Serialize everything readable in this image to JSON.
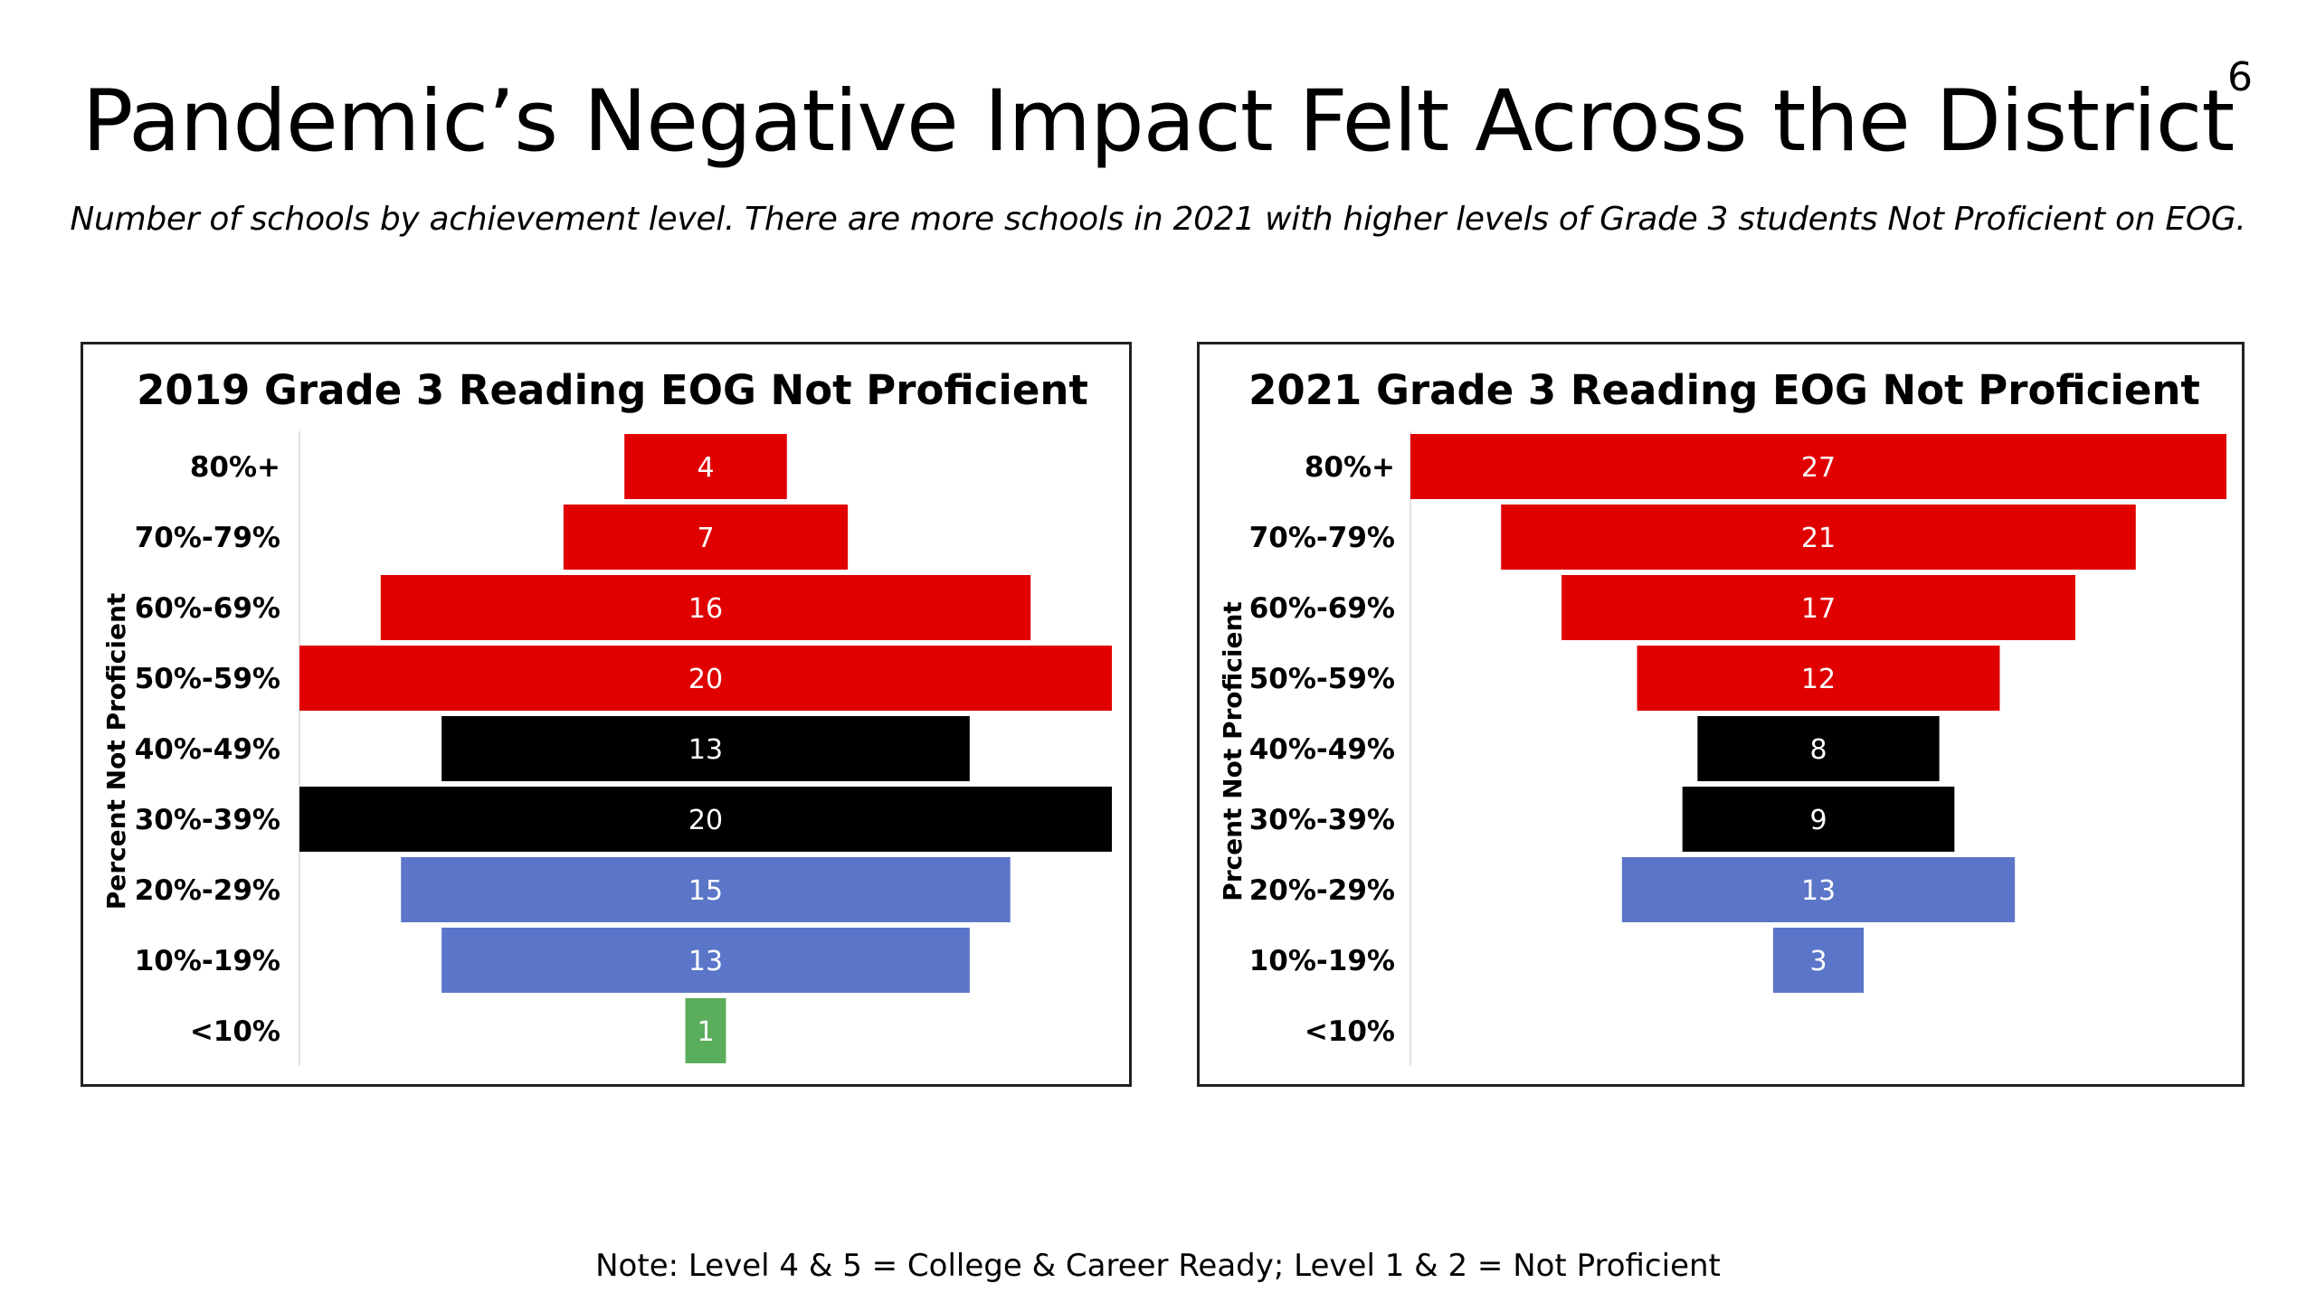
{
  "page_number": "6",
  "title": "Pandemic’s Negative Impact Felt Across the District",
  "subtitle": "Number of schools by achievement level. There are more schools in 2021 with higher levels of Grade 3 students Not Proficient on EOG.",
  "note": "Note: Level 4 & 5 = College & Career Ready; Level 1 & 2 = Not Proficient",
  "colors": {
    "red": "#e00000",
    "black": "#000000",
    "blue": "#5b76c8",
    "green": "#5aad5a"
  },
  "chart_data": [
    {
      "type": "bar",
      "orientation": "horizontal-centered",
      "title": "2019 Grade 3 Reading EOG Not Proficient",
      "ylabel": "Percent Not Proficient",
      "categories": [
        "80%+",
        "70%-79%",
        "60%-69%",
        "50%-59%",
        "40%-49%",
        "30%-39%",
        "20%-29%",
        "10%-19%",
        "<10%"
      ],
      "values": [
        4,
        7,
        16,
        20,
        13,
        20,
        15,
        13,
        1
      ],
      "bar_colors": [
        "red",
        "red",
        "red",
        "red",
        "black",
        "black",
        "blue",
        "blue",
        "green"
      ],
      "xlim": [
        0,
        20
      ]
    },
    {
      "type": "bar",
      "orientation": "horizontal-centered",
      "title": "2021 Grade 3 Reading EOG Not Proficient",
      "ylabel": "Prcent Not Proficient",
      "categories": [
        "80%+",
        "70%-79%",
        "60%-69%",
        "50%-59%",
        "40%-49%",
        "30%-39%",
        "20%-29%",
        "10%-19%",
        "<10%"
      ],
      "values": [
        27,
        21,
        17,
        12,
        8,
        9,
        13,
        3,
        0
      ],
      "bar_colors": [
        "red",
        "red",
        "red",
        "red",
        "black",
        "black",
        "blue",
        "blue",
        "green"
      ],
      "xlim": [
        0,
        27
      ]
    }
  ]
}
